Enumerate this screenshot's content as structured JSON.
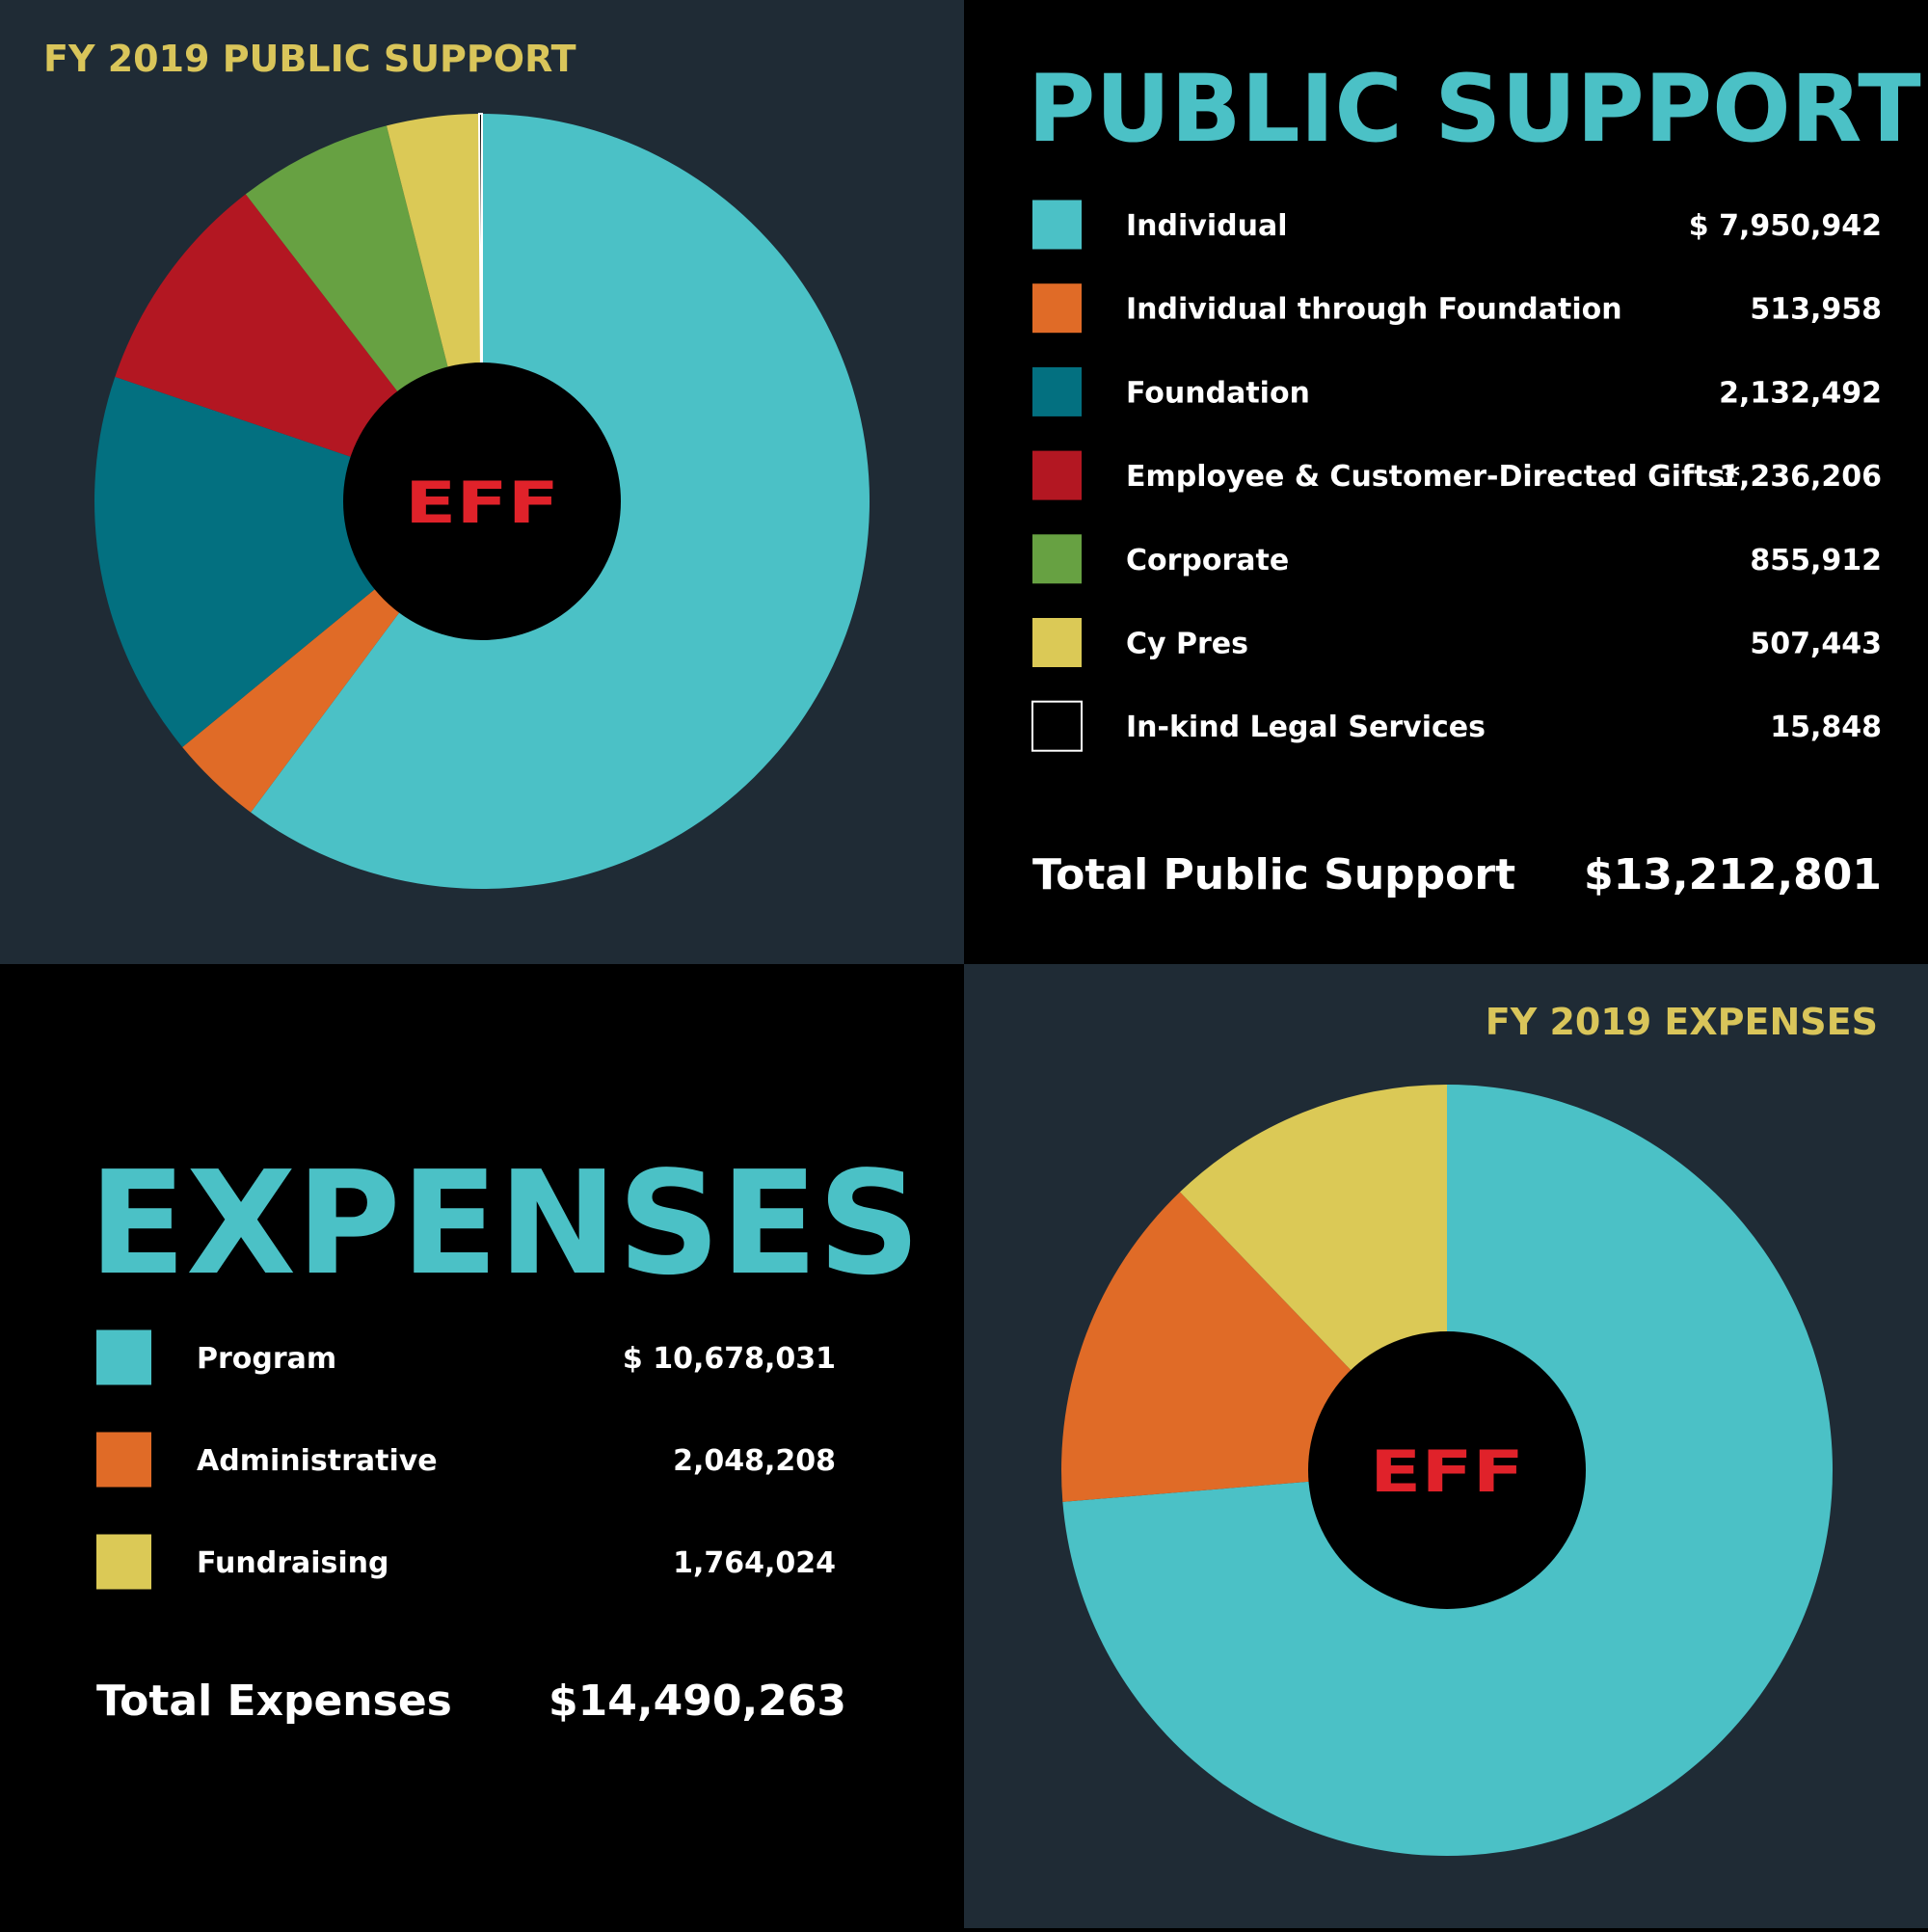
{
  "logo": "EFF",
  "chart_data": [
    {
      "type": "pie",
      "title": "FY 2019 PUBLIC SUPPORT",
      "heading": "PUBLIC SUPPORT",
      "categories": [
        "Individual",
        "Individual through Foundation",
        "Foundation",
        "Employee & Customer-Directed Gifts*",
        "Corporate",
        "Cy Pres",
        "In-kind Legal Services"
      ],
      "values": [
        7950942,
        513958,
        2132492,
        1236206,
        855912,
        507443,
        15848
      ],
      "value_labels": [
        "$ 7,950,942",
        "513,958",
        "2,132,492",
        "1,236,206",
        "855,912",
        "507,443",
        "15,848"
      ],
      "colors": [
        "#4bc1c6",
        "#e06b27",
        "#037080",
        "#b31722",
        "#67a142",
        "#dbc956",
        "#000000"
      ],
      "outlined": [
        false,
        false,
        false,
        false,
        false,
        false,
        true
      ],
      "total_label": "Total Public Support",
      "total_value": "$13,212,801"
    },
    {
      "type": "pie",
      "title": "FY 2019 EXPENSES",
      "heading": "EXPENSES",
      "categories": [
        "Program",
        "Administrative",
        "Fundraising"
      ],
      "values": [
        10678031,
        2048208,
        1764024
      ],
      "value_labels": [
        "$ 10,678,031",
        "2,048,208",
        "1,764,024"
      ],
      "colors": [
        "#4bc1c6",
        "#e06b27",
        "#dbc956"
      ],
      "outlined": [
        false,
        false,
        false
      ],
      "total_label": "Total Expenses",
      "total_value": "$14,490,263"
    }
  ]
}
